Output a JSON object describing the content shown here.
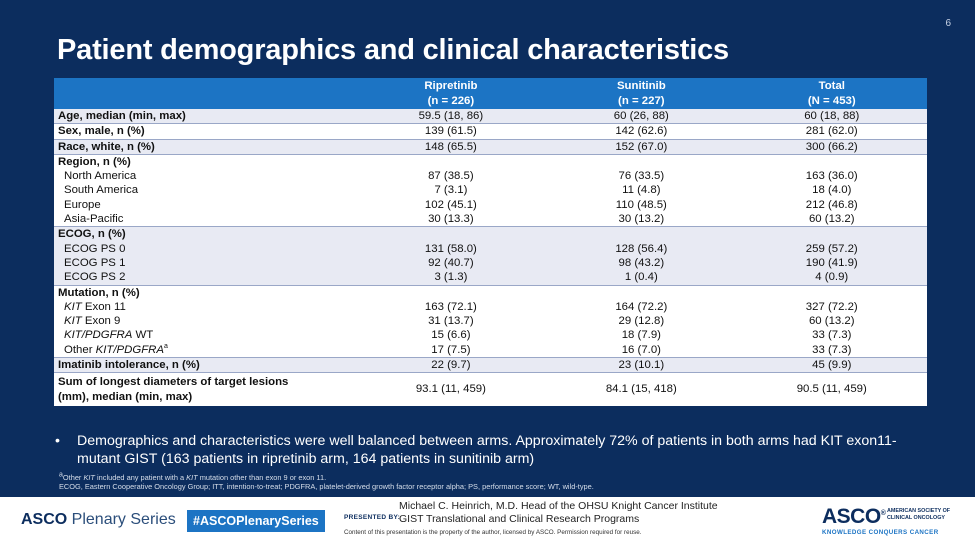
{
  "page_number": "6",
  "title": "Patient demographics and clinical characteristics",
  "table": {
    "columns": [
      {
        "name": "Ripretinib",
        "n": "(n = 226)"
      },
      {
        "name": "Sunitinib",
        "n": "(n = 227)"
      },
      {
        "name": "Total",
        "n": "(N = 453)"
      }
    ],
    "rows": {
      "age": {
        "label": "Age, median (min, max)",
        "v1": "59.5 (18, 86)",
        "v2": "60 (26, 88)",
        "v3": "60 (18, 88)"
      },
      "sex": {
        "label": "Sex, male, n (%)",
        "v1": "139 (61.5)",
        "v2": "142 (62.6)",
        "v3": "281 (62.0)"
      },
      "race": {
        "label": "Race, white, n (%)",
        "v1": "148 (65.5)",
        "v2": "152 (67.0)",
        "v3": "300 (66.2)"
      },
      "region": {
        "label": "Region, n (%)"
      },
      "na": {
        "label": "North America",
        "v1": "87 (38.5)",
        "v2": "76 (33.5)",
        "v3": "163 (36.0)"
      },
      "sa": {
        "label": "South America",
        "v1": "7 (3.1)",
        "v2": "11 (4.8)",
        "v3": "18 (4.0)"
      },
      "eu": {
        "label": "Europe",
        "v1": "102 (45.1)",
        "v2": "110 (48.5)",
        "v3": "212 (46.8)"
      },
      "ap": {
        "label": "Asia-Pacific",
        "v1": "30 (13.3)",
        "v2": "30 (13.2)",
        "v3": "60 (13.2)"
      },
      "ecog": {
        "label": "ECOG, n (%)"
      },
      "ps0": {
        "label": "ECOG PS 0",
        "v1": "131 (58.0)",
        "v2": "128 (56.4)",
        "v3": "259 (57.2)"
      },
      "ps1": {
        "label": "ECOG PS 1",
        "v1": "92 (40.7)",
        "v2": "98 (43.2)",
        "v3": "190 (41.9)"
      },
      "ps2": {
        "label": "ECOG PS 2",
        "v1": "3 (1.3)",
        "v2": "1 (0.4)",
        "v3": "4 (0.9)"
      },
      "mutation": {
        "label": "Mutation, n (%)"
      },
      "kit11": {
        "label_it": "KIT",
        "label": " Exon 11",
        "v1": "163 (72.1)",
        "v2": "164 (72.2)",
        "v3": "327 (72.2)"
      },
      "kit9": {
        "label_it": "KIT",
        "label": " Exon 9",
        "v1": "31 (13.7)",
        "v2": "29 (12.8)",
        "v3": "60 (13.2)"
      },
      "wt": {
        "label_it": "KIT/PDGFRA",
        "label": " WT",
        "v1": "15 (6.6)",
        "v2": "18 (7.9)",
        "v3": "33 (7.3)"
      },
      "other": {
        "label": "Other ",
        "label_it": "KIT/PDGFRA",
        "sup": "a",
        "v1": "17 (7.5)",
        "v2": "16 (7.0)",
        "v3": "33 (7.3)"
      },
      "imatinib": {
        "label": "Imatinib intolerance, n (%)",
        "v1": "22 (9.7)",
        "v2": "23 (10.1)",
        "v3": "45 (9.9)"
      },
      "sld": {
        "label1": "Sum of longest diameters of target lesions",
        "label2": "(mm), median (min, max)",
        "v1": "93.1 (11, 459)",
        "v2": "84.1 (15, 418)",
        "v3": "90.5 (11, 459)"
      }
    }
  },
  "bullet": "Demographics and characteristics were well balanced between arms. Approximately 72% of patients in both arms had KIT exon11-mutant GIST (163 patients in ripretinib arm, 164 patients in sunitinib arm)",
  "footnotes": {
    "a_sup": "a",
    "a_pre": "Other ",
    "a_it1": "KIT",
    "a_mid": " included any patient with a ",
    "a_it2": "KIT",
    "a_post": " mutation other than exon 9 or exon 11.",
    "abbr": "ECOG, Eastern Cooperative Oncology Group; ITT, intention-to-treat; PDGFRA, platelet-derived growth factor receptor alpha; PS, performance score; WT, wild-type."
  },
  "footer": {
    "series_bold": "ASCO",
    "series_rest": " Plenary Series",
    "hashtag": "#ASCOPlenarySeries",
    "presented_by": "PRESENTED BY:",
    "presenter": "Michael C. Heinrich, M.D. Head of the OHSU Knight Cancer Institute GIST Translational and Clinical Research Programs",
    "disclaimer": "Content of this presentation is the property of the author, licensed by ASCO. Permission required for reuse.",
    "asco": "ASCO",
    "asco_reg": "®",
    "society": "AMERICAN SOCIETY OF\nCLINICAL ONCOLOGY",
    "tagline": "KNOWLEDGE CONQUERS CANCER"
  },
  "colors": {
    "navy": "#0c2d5e",
    "header_blue": "#1c74c4",
    "row_shade": "#e8eaf3"
  }
}
